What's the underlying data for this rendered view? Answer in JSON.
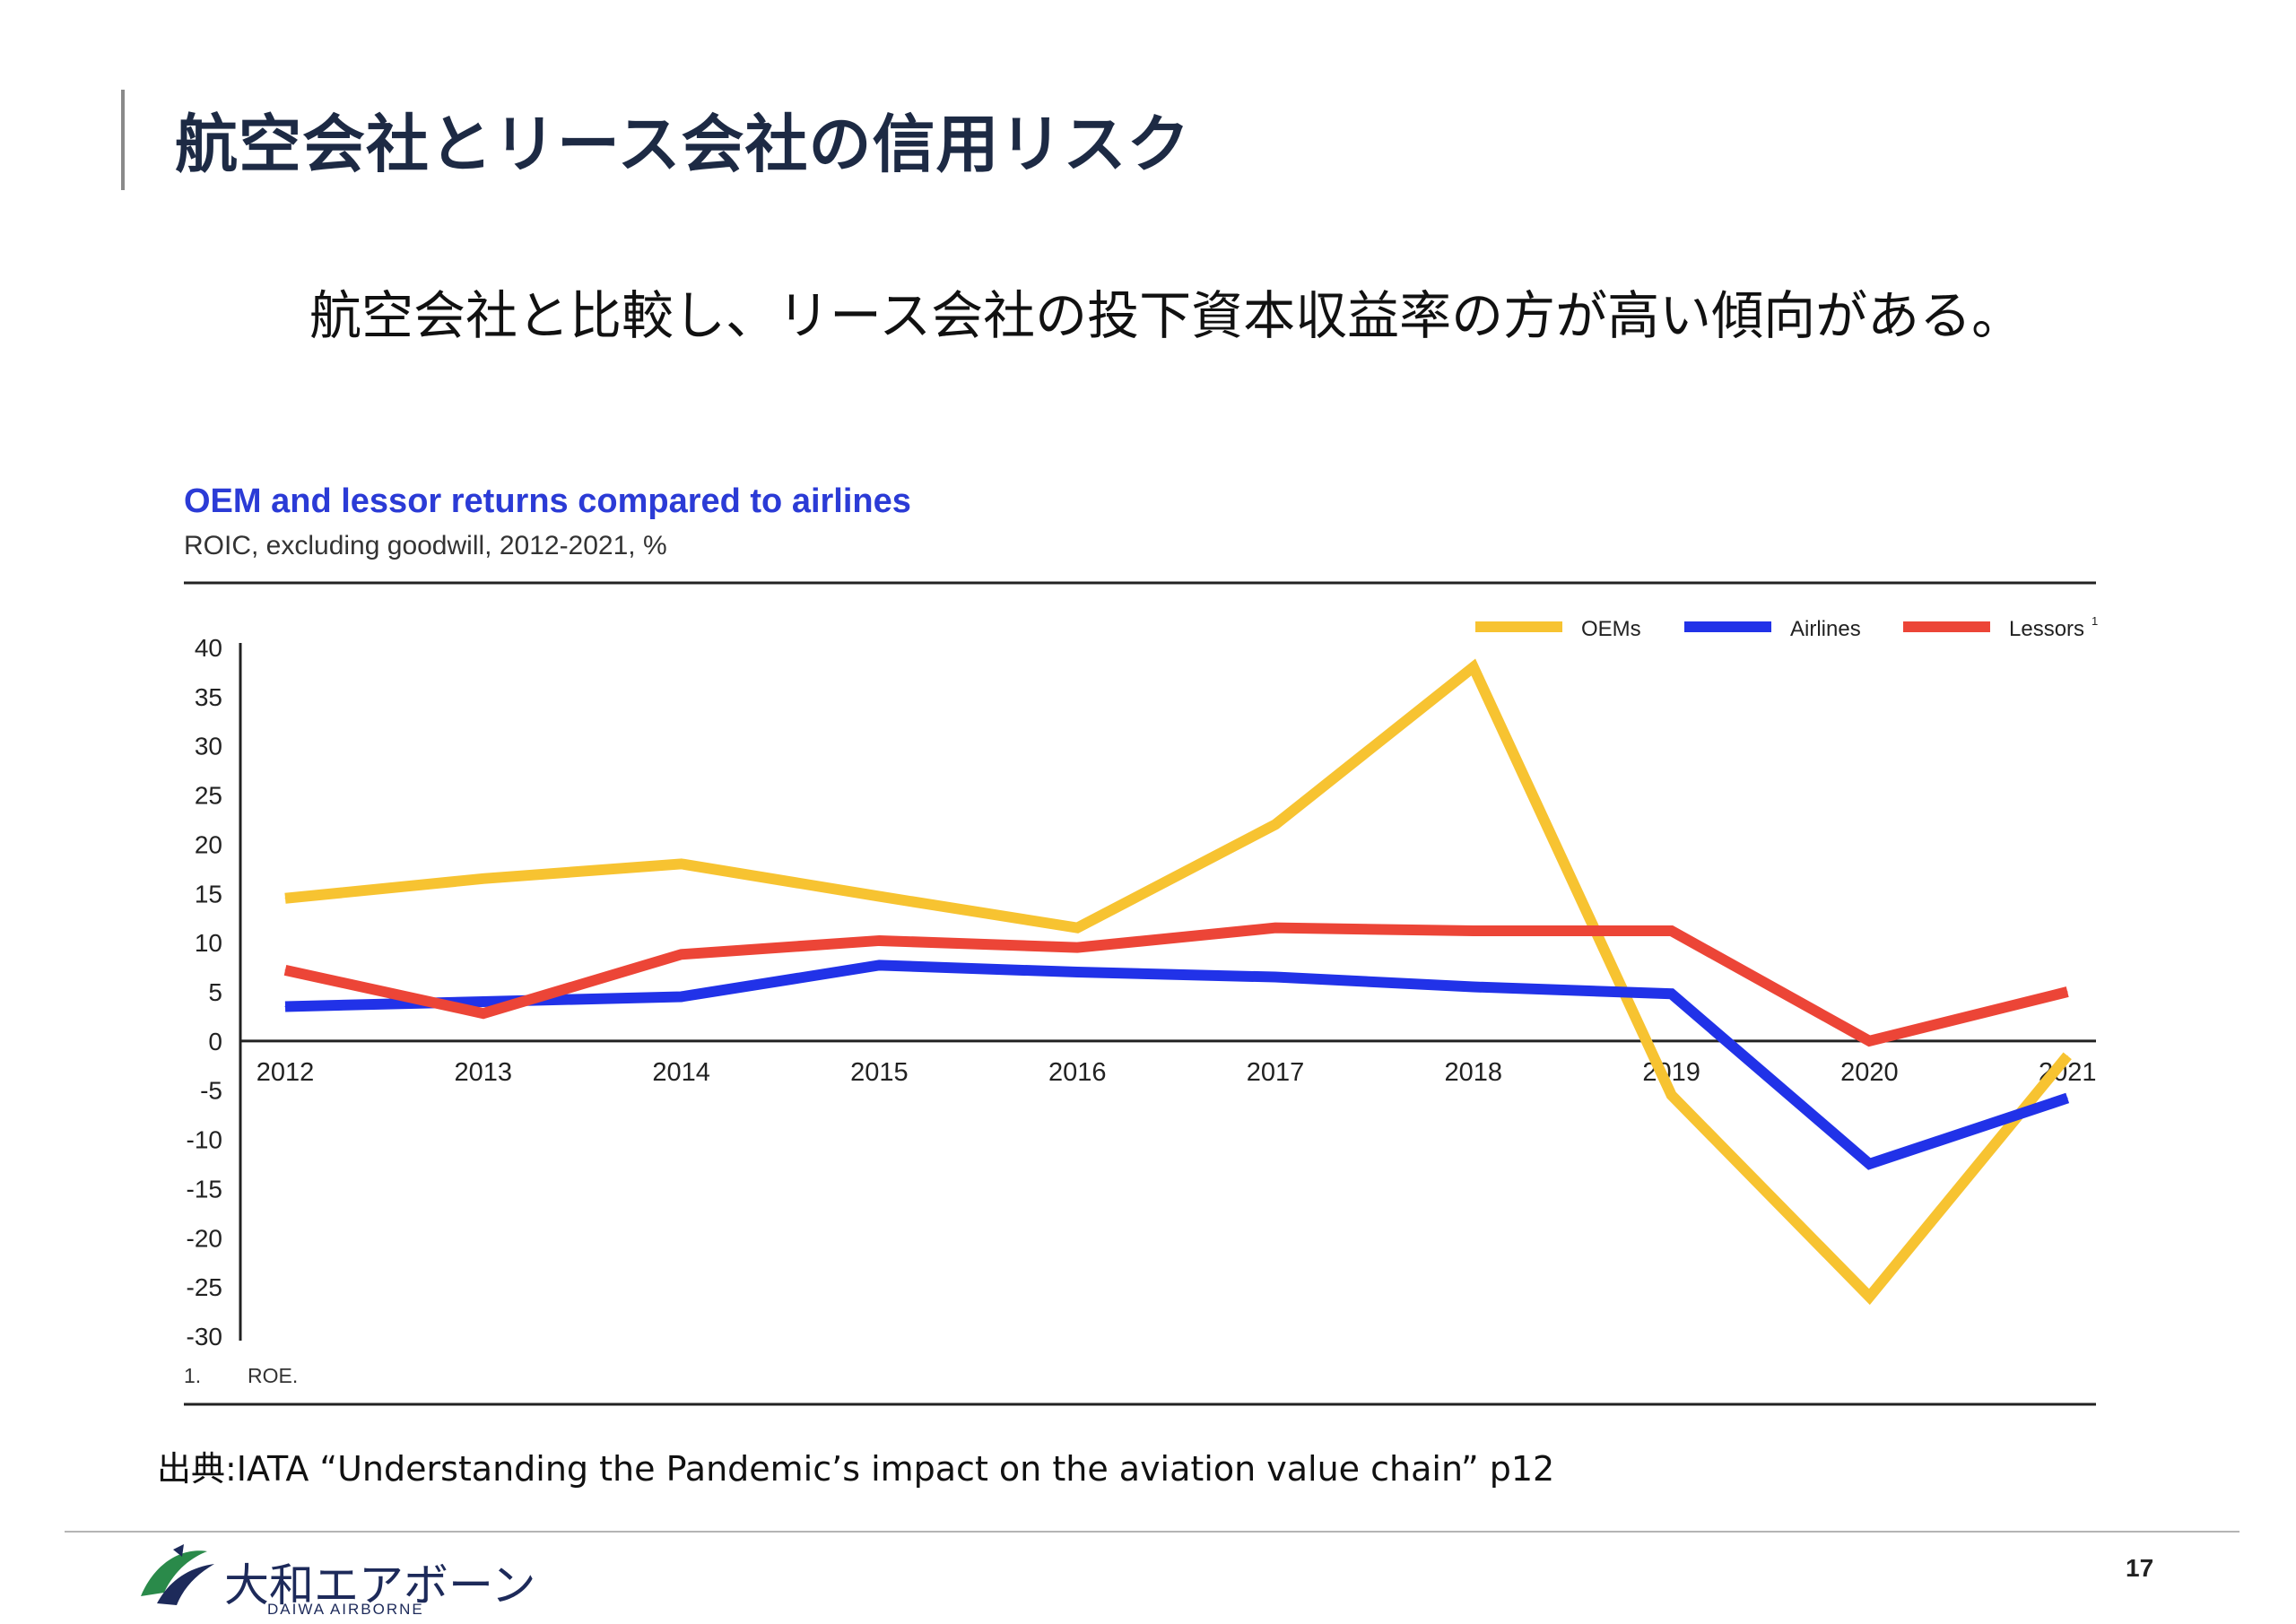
{
  "page": {
    "title": "航空会社とリース会社の信用リスク",
    "lead": "航空会社と比較し、リース会社の投下資本収益率の方が高い傾向がある。",
    "source": "出典:IATA “Understanding the Pandemic’s impact on the aviation value chain” p12",
    "page_number": "17"
  },
  "logo": {
    "name_jp": "大和エアボーン",
    "name_en": "DAIWA AIRBORNE",
    "icon": "daiwa-airborne-logo-icon"
  },
  "chart_data": {
    "type": "line",
    "title": "OEM and lessor returns compared to airlines",
    "subtitle": "ROIC, excluding goodwill, 2012-2021, %",
    "xlabel": "",
    "ylabel": "",
    "x": [
      "2012",
      "2013",
      "2014",
      "2015",
      "2016",
      "2017",
      "2018",
      "2019",
      "2020",
      "2021"
    ],
    "ylim": [
      -30,
      40
    ],
    "yticks": [
      40,
      35,
      30,
      25,
      20,
      15,
      10,
      5,
      0,
      -5,
      -10,
      -15,
      -20,
      -25,
      -30
    ],
    "series": [
      {
        "name": "OEMs",
        "color": "#f7c331",
        "values": [
          14.5,
          16.5,
          18,
          14.7,
          11.5,
          22,
          38,
          -5.5,
          -26,
          -1.5
        ]
      },
      {
        "name": "Airlines",
        "color": "#2132e8",
        "values": [
          3.5,
          4,
          4.5,
          7.7,
          7,
          6.5,
          5.5,
          4.8,
          -12.5,
          -5.8
        ]
      },
      {
        "name": "Lessors",
        "legend_marker": "1",
        "color": "#ec4537",
        "values": [
          7.2,
          2.8,
          8.8,
          10.2,
          9.5,
          11.5,
          11.2,
          11.2,
          0,
          5
        ]
      }
    ],
    "legend": "top-right",
    "grid": false,
    "footnote": {
      "marker": "1.",
      "text": "ROE."
    }
  }
}
